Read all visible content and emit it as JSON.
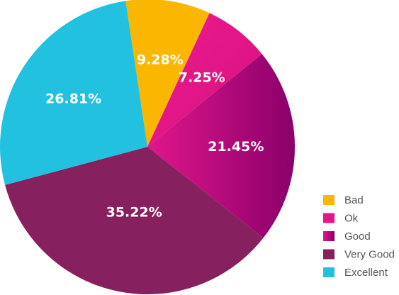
{
  "chart_data": {
    "type": "pie",
    "categories": [
      "Bad",
      "Ok",
      "Good",
      "Very Good",
      "Excellent"
    ],
    "values": [
      9.28,
      7.25,
      21.45,
      35.22,
      26.81
    ],
    "data_labels": [
      "9.28%",
      "7.25%",
      "21.45%",
      "35.22%",
      "26.81%"
    ],
    "colors": [
      "#fbb600",
      "#e6158a",
      "#9a0070",
      "#87205e",
      "#22c1e0"
    ],
    "legend": {
      "placement": "bottom-right",
      "entries": [
        "Bad",
        "Ok",
        "Good",
        "Very Good",
        "Excellent"
      ]
    },
    "title": ""
  }
}
